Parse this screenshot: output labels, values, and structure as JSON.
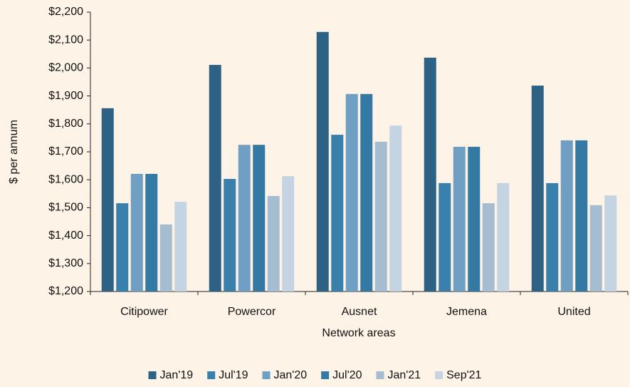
{
  "chart_data": {
    "type": "bar",
    "y_label": "$ per annum",
    "x_label": "Network areas",
    "categories": [
      "Citipower",
      "Powercor",
      "Ausnet",
      "Jemena",
      "United"
    ],
    "series": [
      {
        "name": "Jan'19",
        "color": "#2e6284",
        "values": [
          1856,
          2011,
          2129,
          2037,
          1937
        ]
      },
      {
        "name": "Jul'19",
        "color": "#3a80ad",
        "values": [
          1516,
          1603,
          1761,
          1588,
          1588
        ]
      },
      {
        "name": "Jan'20",
        "color": "#6f9fc2",
        "values": [
          1621,
          1725,
          1907,
          1718,
          1741
        ]
      },
      {
        "name": "Jul'20",
        "color": "#3479a3",
        "values": [
          1621,
          1725,
          1907,
          1718,
          1741
        ]
      },
      {
        "name": "Jan'21",
        "color": "#a6bcd0",
        "values": [
          1440,
          1542,
          1736,
          1516,
          1509
        ]
      },
      {
        "name": "Sep'21",
        "color": "#c5d4e2",
        "values": [
          1521,
          1613,
          1794,
          1588,
          1544
        ]
      }
    ],
    "ylim": [
      1200,
      2200
    ],
    "yticks": [
      {
        "value": 1200,
        "label": "$1,200"
      },
      {
        "value": 1300,
        "label": "$1,300"
      },
      {
        "value": 1400,
        "label": "$1,400"
      },
      {
        "value": 1500,
        "label": "$1,500"
      },
      {
        "value": 1600,
        "label": "$1,600"
      },
      {
        "value": 1700,
        "label": "$1,700"
      },
      {
        "value": 1800,
        "label": "$1,800"
      },
      {
        "value": 1900,
        "label": "$1,900"
      },
      {
        "value": 2000,
        "label": "$2,000"
      },
      {
        "value": 2100,
        "label": "$2,100"
      },
      {
        "value": 2200,
        "label": "$2,200"
      }
    ],
    "legend": "bottom",
    "grid": false
  }
}
